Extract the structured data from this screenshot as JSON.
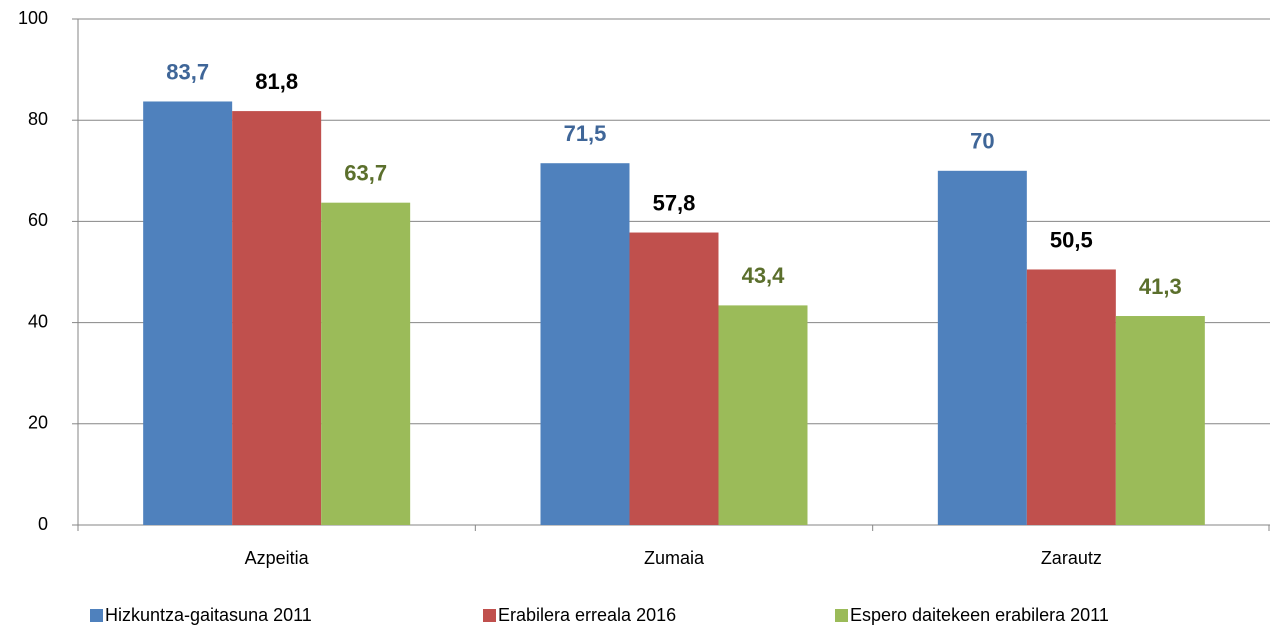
{
  "chart_data": {
    "type": "bar",
    "categories": [
      "Azpeitia",
      "Zumaia",
      "Zarautz"
    ],
    "series": [
      {
        "name": "Hizkuntza-gaitasuna 2011",
        "color": "#4f81bd",
        "label_color": "#3f6698",
        "values": [
          83.7,
          71.5,
          70
        ],
        "value_labels": [
          "83,7",
          "71,5",
          "70"
        ]
      },
      {
        "name": "Erabilera erreala 2016",
        "color": "#c0504d",
        "label_color": "#000000",
        "values": [
          81.8,
          57.8,
          50.5
        ],
        "value_labels": [
          "81,8",
          "57,8",
          "50,5"
        ]
      },
      {
        "name": "Espero daitekeen erabilera 2011",
        "color": "#9bbb59",
        "label_color": "#5b6f2c",
        "values": [
          63.7,
          43.4,
          41.3
        ],
        "value_labels": [
          "63,7",
          "43,4",
          "41,3"
        ]
      }
    ],
    "ylim": [
      0,
      100
    ],
    "yticks": [
      0,
      20,
      40,
      60,
      80,
      100
    ],
    "grid": true,
    "legend": "bottom"
  }
}
